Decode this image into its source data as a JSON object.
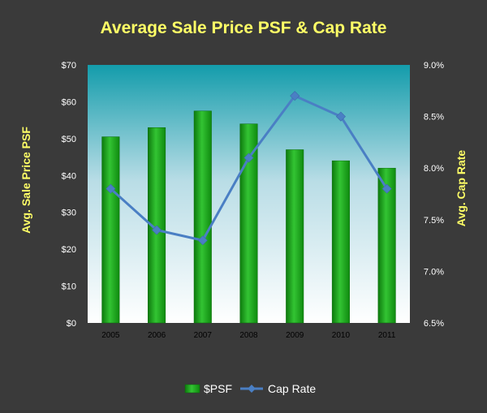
{
  "chart_data": {
    "type": "bar",
    "title": "Average Sale Price PSF & Cap Rate",
    "categories": [
      "2005",
      "2006",
      "2007",
      "2008",
      "2009",
      "2010",
      "2011"
    ],
    "series": [
      {
        "name": "$PSF",
        "type": "bar",
        "axis": "left",
        "values": [
          50.5,
          53,
          57.5,
          54,
          47,
          44,
          42
        ]
      },
      {
        "name": "Cap Rate",
        "type": "line",
        "axis": "right",
        "values": [
          0.078,
          0.074,
          0.073,
          0.081,
          0.087,
          0.085,
          0.078
        ]
      }
    ],
    "ylabel": "Avg. Sale Price PSF",
    "y2label": "Avg. Cap Rate",
    "ylim": [
      0,
      70
    ],
    "y2lim": [
      0.065,
      0.09
    ],
    "yticks": [
      "$0",
      "$10",
      "$20",
      "$30",
      "$40",
      "$50",
      "$60",
      "$70"
    ],
    "y2ticks": [
      "6.5%",
      "7.0%",
      "7.5%",
      "8.0%",
      "8.5%",
      "9.0%"
    ],
    "legend_position": "bottom",
    "colors": {
      "bar": "#1fa81f",
      "line": "#4a7fc4",
      "title": "#ffff66",
      "axis_label": "#ffff66",
      "tick_label": "#ffffff",
      "category_label": "#000000",
      "legend_text": "#ffffff",
      "background": "#3a3a3a"
    }
  }
}
